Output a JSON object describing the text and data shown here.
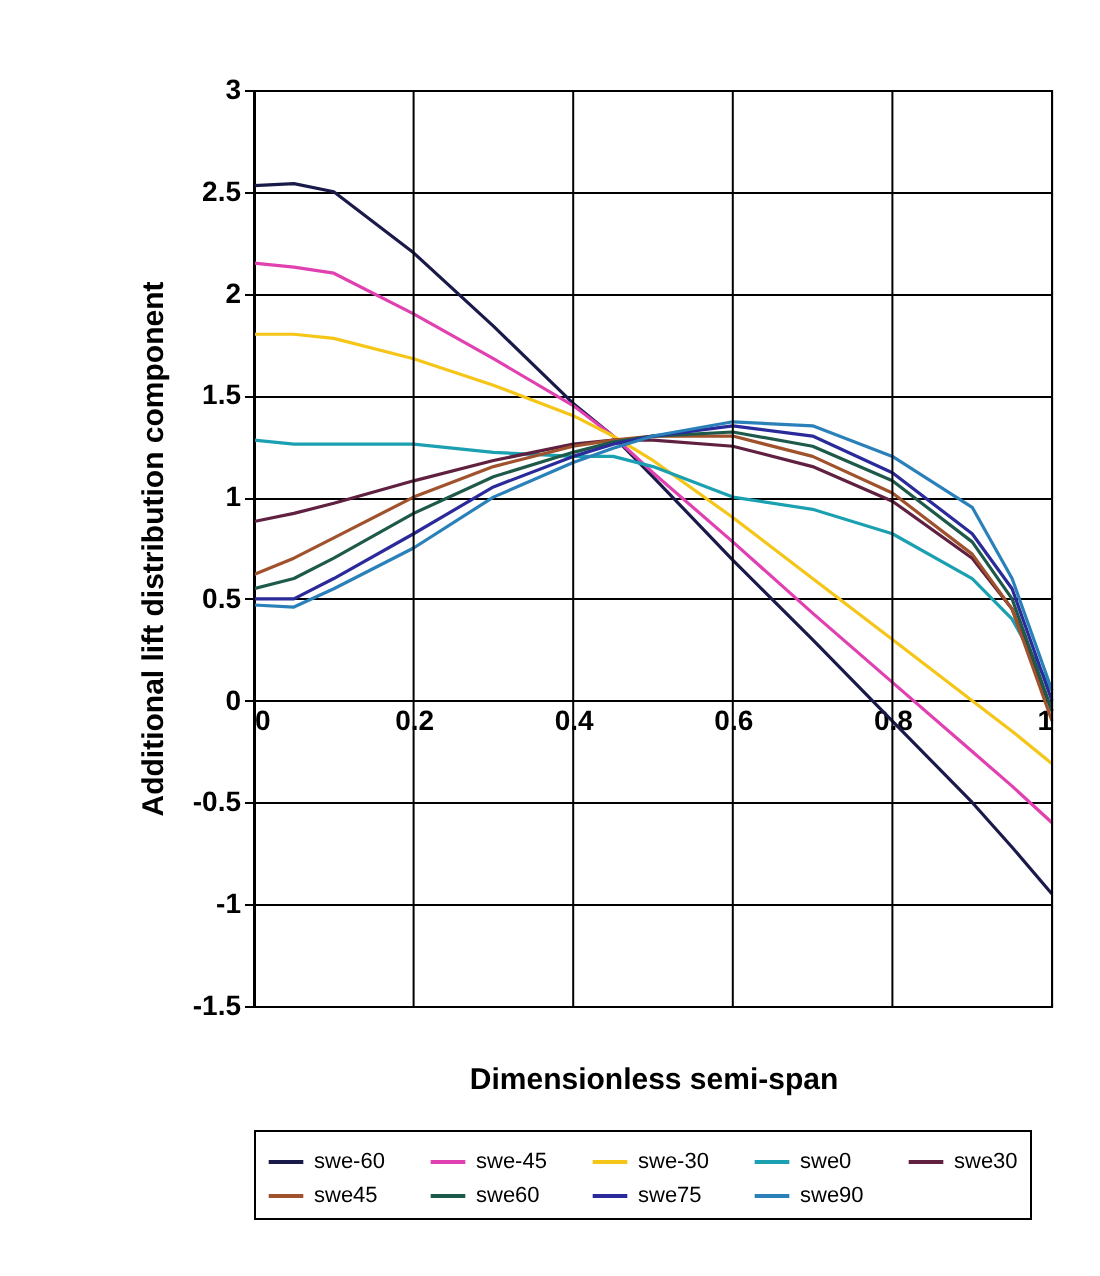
{
  "chart_data": {
    "type": "line",
    "xlabel": "Dimensionless semi-span",
    "ylabel": "Additional lift distribution component",
    "x": [
      0,
      0.05,
      0.1,
      0.2,
      0.3,
      0.4,
      0.45,
      0.5,
      0.6,
      0.7,
      0.8,
      0.9,
      0.95,
      1
    ],
    "series": [
      {
        "name": "swe-60",
        "color": "#1a1a4a",
        "values": [
          2.53,
          2.54,
          2.5,
          2.2,
          1.84,
          1.46,
          1.3,
          1.1,
          0.69,
          0.3,
          -0.1,
          -0.5,
          -0.72,
          -0.95
        ]
      },
      {
        "name": "swe-45",
        "color": "#e040b0",
        "values": [
          2.15,
          2.13,
          2.1,
          1.9,
          1.68,
          1.45,
          1.3,
          1.12,
          0.78,
          0.43,
          0.09,
          -0.25,
          -0.42,
          -0.6
        ]
      },
      {
        "name": "swe-30",
        "color": "#f5c518",
        "values": [
          1.8,
          1.8,
          1.78,
          1.68,
          1.55,
          1.4,
          1.3,
          1.18,
          0.9,
          0.6,
          0.3,
          0.0,
          -0.15,
          -0.31
        ]
      },
      {
        "name": "swe0",
        "color": "#1aa0b0",
        "values": [
          1.28,
          1.26,
          1.26,
          1.26,
          1.22,
          1.2,
          1.2,
          1.15,
          1.0,
          0.94,
          0.82,
          0.6,
          0.4,
          0.05
        ]
      },
      {
        "name": "swe30",
        "color": "#602040",
        "values": [
          0.88,
          0.92,
          0.97,
          1.08,
          1.18,
          1.26,
          1.28,
          1.28,
          1.25,
          1.15,
          0.98,
          0.7,
          0.45,
          -0.05
        ]
      },
      {
        "name": "swe45",
        "color": "#a0522d",
        "values": [
          0.62,
          0.7,
          0.8,
          1.0,
          1.15,
          1.25,
          1.28,
          1.3,
          1.3,
          1.2,
          1.02,
          0.72,
          0.45,
          -0.1
        ]
      },
      {
        "name": "swe60",
        "color": "#1e5a4a",
        "values": [
          0.55,
          0.6,
          0.7,
          0.92,
          1.1,
          1.22,
          1.27,
          1.3,
          1.32,
          1.25,
          1.08,
          0.78,
          0.5,
          -0.05
        ]
      },
      {
        "name": "swe75",
        "color": "#2a2a9a",
        "values": [
          0.5,
          0.5,
          0.6,
          0.82,
          1.05,
          1.2,
          1.26,
          1.3,
          1.35,
          1.3,
          1.12,
          0.82,
          0.55,
          0.0
        ]
      },
      {
        "name": "swe90",
        "color": "#2a80b8",
        "values": [
          0.47,
          0.46,
          0.55,
          0.75,
          1.0,
          1.17,
          1.24,
          1.3,
          1.37,
          1.35,
          1.2,
          0.95,
          0.6,
          0.05
        ]
      }
    ],
    "xlim": [
      0,
      1
    ],
    "xticks": [
      0,
      0.2,
      0.4,
      0.6,
      0.8,
      1
    ],
    "ylim": [
      -1.5,
      3
    ],
    "yticks": [
      -1.5,
      -1,
      -0.5,
      0,
      0.5,
      1,
      1.5,
      2,
      2.5,
      3
    ],
    "grid": true,
    "legend": "bottom",
    "marker": "none",
    "line_style": "solid"
  }
}
